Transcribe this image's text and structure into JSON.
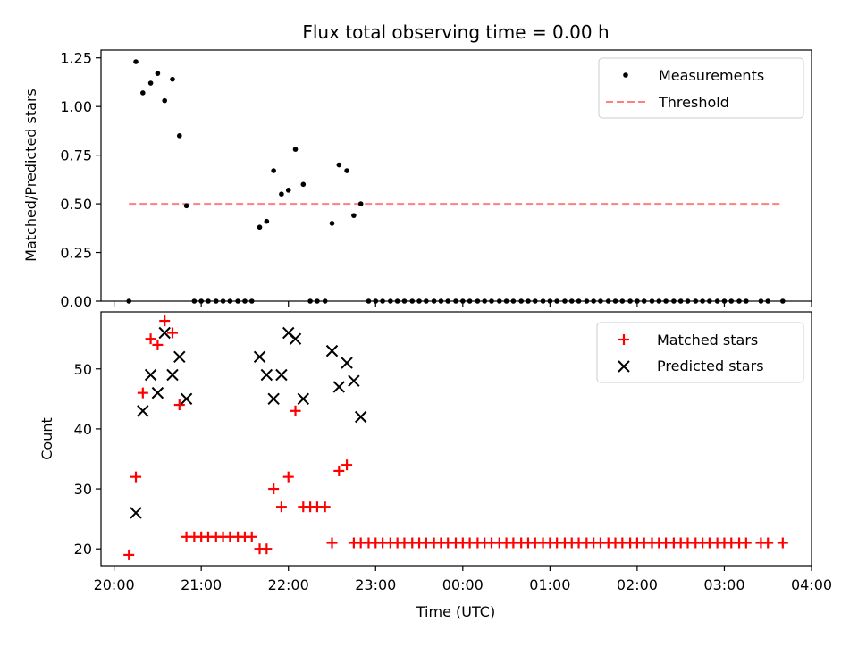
{
  "chart_data": [
    {
      "type": "scatter",
      "title": "Flux total observing time = 0.00 h",
      "xlabel": "",
      "ylabel": "Matched/Predicted stars",
      "ylim": [
        0.0,
        1.29
      ],
      "yticks": [
        "0.00",
        "0.25",
        "0.50",
        "0.75",
        "1.00",
        "1.25"
      ],
      "legend_position": "top-right",
      "series": [
        {
          "name": "Measurements",
          "color": "#000000",
          "marker": "dot",
          "points": [
            [
              20.17,
              0.0
            ],
            [
              20.25,
              1.23
            ],
            [
              20.33,
              1.07
            ],
            [
              20.42,
              1.12
            ],
            [
              20.5,
              1.17
            ],
            [
              20.58,
              1.03
            ],
            [
              20.67,
              1.14
            ],
            [
              20.75,
              0.85
            ],
            [
              20.83,
              0.49
            ],
            [
              20.92,
              0.0
            ],
            [
              21.0,
              0.0
            ],
            [
              21.08,
              0.0
            ],
            [
              21.17,
              0.0
            ],
            [
              21.25,
              0.0
            ],
            [
              21.33,
              0.0
            ],
            [
              21.42,
              0.0
            ],
            [
              21.5,
              0.0
            ],
            [
              21.58,
              0.0
            ],
            [
              21.67,
              0.38
            ],
            [
              21.75,
              0.41
            ],
            [
              21.83,
              0.67
            ],
            [
              21.92,
              0.55
            ],
            [
              22.0,
              0.57
            ],
            [
              22.08,
              0.78
            ],
            [
              22.17,
              0.6
            ],
            [
              22.25,
              0.0
            ],
            [
              22.33,
              0.0
            ],
            [
              22.42,
              0.0
            ],
            [
              22.5,
              0.4
            ],
            [
              22.58,
              0.7
            ],
            [
              22.67,
              0.67
            ],
            [
              22.75,
              0.44
            ],
            [
              22.83,
              0.5
            ],
            [
              22.92,
              0.0
            ],
            [
              23.0,
              0.0
            ],
            [
              23.08,
              0.0
            ],
            [
              23.17,
              0.0
            ],
            [
              23.25,
              0.0
            ],
            [
              23.33,
              0.0
            ],
            [
              23.42,
              0.0
            ],
            [
              23.5,
              0.0
            ],
            [
              23.58,
              0.0
            ],
            [
              23.67,
              0.0
            ],
            [
              23.75,
              0.0
            ],
            [
              23.83,
              0.0
            ],
            [
              23.92,
              0.0
            ],
            [
              24.0,
              0.0
            ],
            [
              24.08,
              0.0
            ],
            [
              24.17,
              0.0
            ],
            [
              24.25,
              0.0
            ],
            [
              24.33,
              0.0
            ],
            [
              24.42,
              0.0
            ],
            [
              24.5,
              0.0
            ],
            [
              24.58,
              0.0
            ],
            [
              24.67,
              0.0
            ],
            [
              24.75,
              0.0
            ],
            [
              24.83,
              0.0
            ],
            [
              24.92,
              0.0
            ],
            [
              25.0,
              0.0
            ],
            [
              25.08,
              0.0
            ],
            [
              25.17,
              0.0
            ],
            [
              25.25,
              0.0
            ],
            [
              25.33,
              0.0
            ],
            [
              25.42,
              0.0
            ],
            [
              25.5,
              0.0
            ],
            [
              25.58,
              0.0
            ],
            [
              25.67,
              0.0
            ],
            [
              25.75,
              0.0
            ],
            [
              25.83,
              0.0
            ],
            [
              25.92,
              0.0
            ],
            [
              26.0,
              0.0
            ],
            [
              26.08,
              0.0
            ],
            [
              26.17,
              0.0
            ],
            [
              26.25,
              0.0
            ],
            [
              26.33,
              0.0
            ],
            [
              26.42,
              0.0
            ],
            [
              26.5,
              0.0
            ],
            [
              26.58,
              0.0
            ],
            [
              26.67,
              0.0
            ],
            [
              26.75,
              0.0
            ],
            [
              26.83,
              0.0
            ],
            [
              26.92,
              0.0
            ],
            [
              27.0,
              0.0
            ],
            [
              27.08,
              0.0
            ],
            [
              27.17,
              0.0
            ],
            [
              27.25,
              0.0
            ],
            [
              27.42,
              0.0
            ],
            [
              27.5,
              0.0
            ],
            [
              27.67,
              0.0
            ]
          ]
        },
        {
          "name": "Threshold",
          "color": "#ff7f7f",
          "style": "dashed",
          "points": [
            [
              20.17,
              0.5
            ],
            [
              27.67,
              0.5
            ]
          ]
        }
      ]
    },
    {
      "type": "scatter",
      "title": "",
      "xlabel": "Time (UTC)",
      "ylabel": "Count",
      "ylim": [
        17.2,
        59.5
      ],
      "yticks": [
        "20",
        "30",
        "40",
        "50"
      ],
      "xlim": [
        19.85,
        28.0
      ],
      "xticks": [
        "20:00",
        "21:00",
        "22:00",
        "23:00",
        "00:00",
        "01:00",
        "02:00",
        "03:00",
        "04:00"
      ],
      "legend_position": "top-right",
      "series": [
        {
          "name": "Matched stars",
          "color": "#ff0000",
          "marker": "plus",
          "points": [
            [
              20.17,
              19
            ],
            [
              20.25,
              32
            ],
            [
              20.33,
              46
            ],
            [
              20.42,
              55
            ],
            [
              20.5,
              54
            ],
            [
              20.58,
              58
            ],
            [
              20.67,
              56
            ],
            [
              20.75,
              44
            ],
            [
              20.83,
              22
            ],
            [
              20.92,
              22
            ],
            [
              21.0,
              22
            ],
            [
              21.08,
              22
            ],
            [
              21.17,
              22
            ],
            [
              21.25,
              22
            ],
            [
              21.33,
              22
            ],
            [
              21.42,
              22
            ],
            [
              21.5,
              22
            ],
            [
              21.58,
              22
            ],
            [
              21.67,
              20
            ],
            [
              21.75,
              20
            ],
            [
              21.83,
              30
            ],
            [
              21.92,
              27
            ],
            [
              22.0,
              32
            ],
            [
              22.08,
              43
            ],
            [
              22.17,
              27
            ],
            [
              22.25,
              27
            ],
            [
              22.33,
              27
            ],
            [
              22.42,
              27
            ],
            [
              22.5,
              21
            ],
            [
              22.58,
              33
            ],
            [
              22.67,
              34
            ],
            [
              22.75,
              21
            ],
            [
              22.83,
              21
            ],
            [
              22.92,
              21
            ],
            [
              23.0,
              21
            ],
            [
              23.08,
              21
            ],
            [
              23.17,
              21
            ],
            [
              23.25,
              21
            ],
            [
              23.33,
              21
            ],
            [
              23.42,
              21
            ],
            [
              23.5,
              21
            ],
            [
              23.58,
              21
            ],
            [
              23.67,
              21
            ],
            [
              23.75,
              21
            ],
            [
              23.83,
              21
            ],
            [
              23.92,
              21
            ],
            [
              24.0,
              21
            ],
            [
              24.08,
              21
            ],
            [
              24.17,
              21
            ],
            [
              24.25,
              21
            ],
            [
              24.33,
              21
            ],
            [
              24.42,
              21
            ],
            [
              24.5,
              21
            ],
            [
              24.58,
              21
            ],
            [
              24.67,
              21
            ],
            [
              24.75,
              21
            ],
            [
              24.83,
              21
            ],
            [
              24.92,
              21
            ],
            [
              25.0,
              21
            ],
            [
              25.08,
              21
            ],
            [
              25.17,
              21
            ],
            [
              25.25,
              21
            ],
            [
              25.33,
              21
            ],
            [
              25.42,
              21
            ],
            [
              25.5,
              21
            ],
            [
              25.58,
              21
            ],
            [
              25.67,
              21
            ],
            [
              25.75,
              21
            ],
            [
              25.83,
              21
            ],
            [
              25.92,
              21
            ],
            [
              26.0,
              21
            ],
            [
              26.08,
              21
            ],
            [
              26.17,
              21
            ],
            [
              26.25,
              21
            ],
            [
              26.33,
              21
            ],
            [
              26.42,
              21
            ],
            [
              26.5,
              21
            ],
            [
              26.58,
              21
            ],
            [
              26.67,
              21
            ],
            [
              26.75,
              21
            ],
            [
              26.83,
              21
            ],
            [
              26.92,
              21
            ],
            [
              27.0,
              21
            ],
            [
              27.08,
              21
            ],
            [
              27.17,
              21
            ],
            [
              27.25,
              21
            ],
            [
              27.42,
              21
            ],
            [
              27.5,
              21
            ],
            [
              27.67,
              21
            ]
          ]
        },
        {
          "name": "Predicted stars",
          "color": "#000000",
          "marker": "x",
          "points": [
            [
              20.25,
              26
            ],
            [
              20.33,
              43
            ],
            [
              20.42,
              49
            ],
            [
              20.5,
              46
            ],
            [
              20.58,
              56
            ],
            [
              20.67,
              49
            ],
            [
              20.75,
              52
            ],
            [
              20.83,
              45
            ],
            [
              21.67,
              52
            ],
            [
              21.75,
              49
            ],
            [
              21.83,
              45
            ],
            [
              21.92,
              49
            ],
            [
              22.0,
              56
            ],
            [
              22.08,
              55
            ],
            [
              22.17,
              45
            ],
            [
              22.5,
              53
            ],
            [
              22.58,
              47
            ],
            [
              22.67,
              51
            ],
            [
              22.75,
              48
            ],
            [
              22.83,
              42
            ]
          ]
        }
      ]
    }
  ]
}
